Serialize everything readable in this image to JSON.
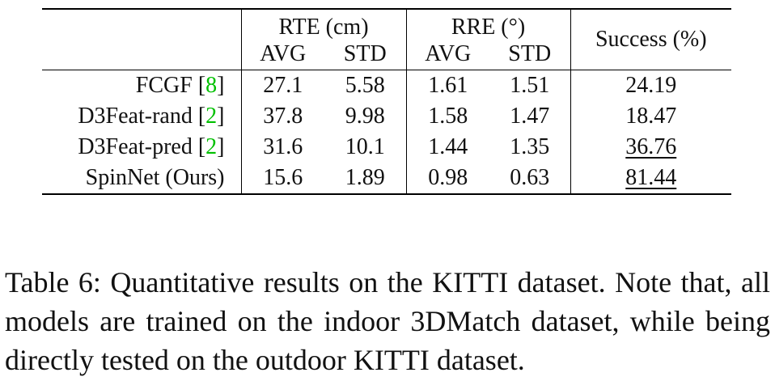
{
  "table": {
    "header": {
      "group_rte": "RTE (cm)",
      "group_rre": "RRE (°)",
      "success": "Success (%)",
      "avg": "AVG",
      "std": "STD"
    },
    "rows": [
      {
        "method": "FCGF",
        "cite": "8",
        "rte_avg": "27.1",
        "rte_std": "5.58",
        "rre_avg": "1.61",
        "rre_std": "1.51",
        "success": "24.19"
      },
      {
        "method": "D3Feat-rand",
        "cite": "2",
        "rte_avg": "37.8",
        "rte_std": "9.98",
        "rre_avg": "1.58",
        "rre_std": "1.47",
        "success": "18.47"
      },
      {
        "method": "D3Feat-pred",
        "cite": "2",
        "rte_avg": "31.6",
        "rte_std": "10.1",
        "rre_avg": "1.44",
        "rre_std": "1.35",
        "success": "36.76"
      },
      {
        "method": "SpinNet (Ours)",
        "cite": "",
        "rte_avg": "15.6",
        "rte_std": "1.89",
        "rre_avg": "0.98",
        "rre_std": "0.63",
        "success": "81.44"
      }
    ]
  },
  "caption": "Table 6:  Quantitative results on the KITTI dataset.  Note that, all models are trained on the indoor 3DMatch dataset, while being directly tested on the outdoor KITTI dataset."
}
